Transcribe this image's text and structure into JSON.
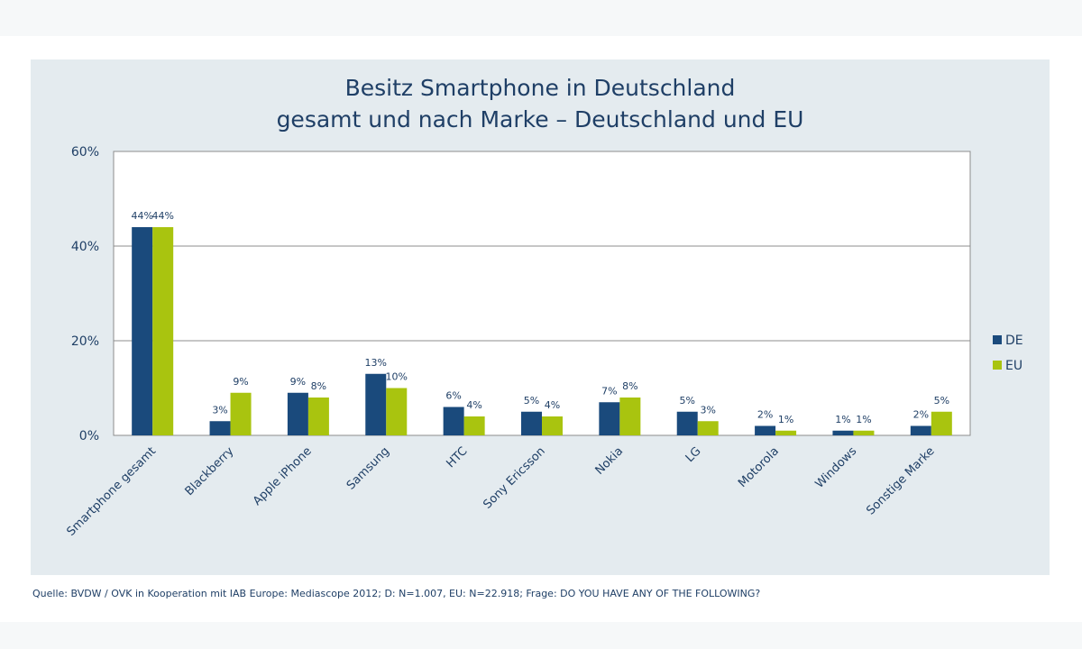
{
  "chart_data": {
    "type": "bar",
    "title_line1": "Besitz Smartphone in Deutschland",
    "title_line2": "gesamt und nach Marke – Deutschland und EU",
    "categories": [
      "Smartphone gesamt",
      "Blackberry",
      "Apple iPhone",
      "Samsung",
      "HTC",
      "Sony Ericsson",
      "Nokia",
      "LG",
      "Motorola",
      "Windows",
      "Sonstige Marke"
    ],
    "series": [
      {
        "name": "DE",
        "color": "#1a4a7c",
        "values": [
          44,
          3,
          9,
          13,
          6,
          5,
          7,
          5,
          2,
          1,
          2
        ]
      },
      {
        "name": "EU",
        "color": "#a9c40f",
        "values": [
          44,
          9,
          8,
          10,
          4,
          4,
          8,
          3,
          1,
          1,
          5
        ]
      }
    ],
    "ylim": [
      0,
      60
    ],
    "yticks": [
      0,
      20,
      40,
      60
    ],
    "ytick_labels": [
      "0%",
      "20%",
      "40%",
      "60%"
    ],
    "value_suffix": "%",
    "grid": true,
    "legend_position": "right"
  },
  "source_text": "Quelle: BVDW / OVK in Kooperation mit IAB Europe: Mediascope 2012; D: N=1.007, EU: N=22.918; Frage: DO YOU HAVE ANY OF THE FOLLOWING?"
}
